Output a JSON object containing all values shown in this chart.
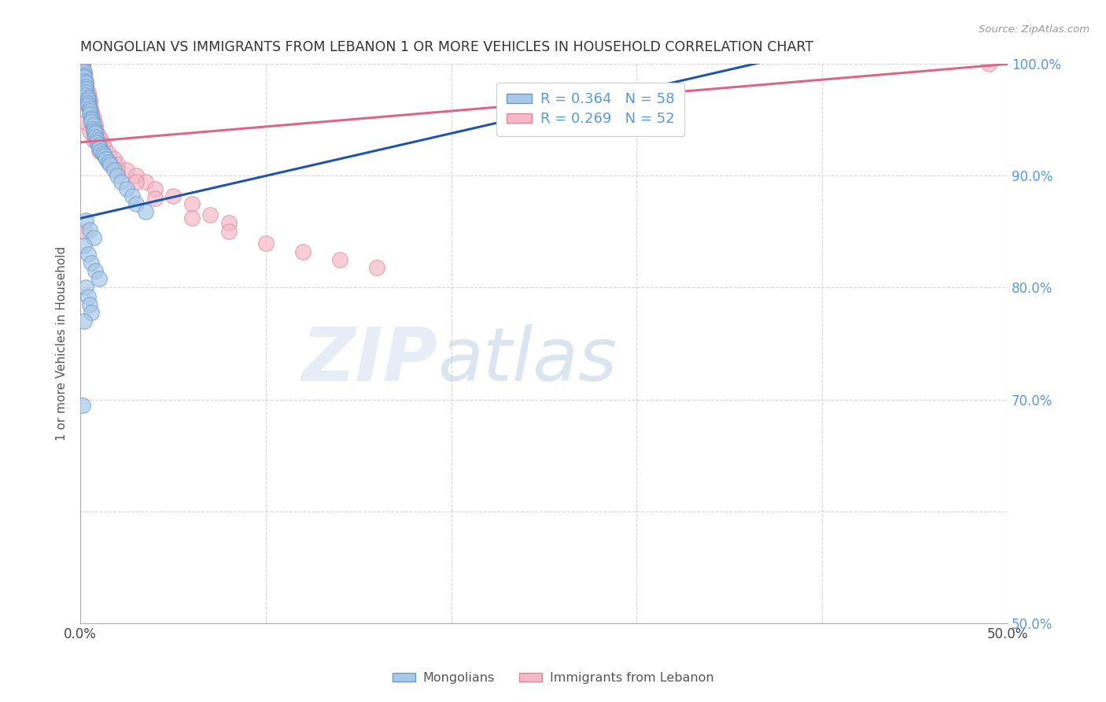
{
  "title": "MONGOLIAN VS IMMIGRANTS FROM LEBANON 1 OR MORE VEHICLES IN HOUSEHOLD CORRELATION CHART",
  "source": "Source: ZipAtlas.com",
  "ylabel": "1 or more Vehicles in Household",
  "xlim": [
    0.0,
    0.5
  ],
  "ylim": [
    0.5,
    1.0
  ],
  "xtick_vals": [
    0.0,
    0.1,
    0.2,
    0.3,
    0.4,
    0.5
  ],
  "xticklabels": [
    "0.0%",
    "",
    "",
    "",
    "",
    "50.0%"
  ],
  "ytick_vals": [
    0.5,
    0.6,
    0.7,
    0.8,
    0.9,
    1.0
  ],
  "yticklabels_right": [
    "50.0%",
    "",
    "70.0%",
    "80.0%",
    "90.0%",
    "100.0%"
  ],
  "mongolian_color": "#A8C8E8",
  "lebanon_color": "#F4B8C8",
  "mongolian_edge": "#6699CC",
  "lebanon_edge": "#DD8899",
  "trend_mongolian_color": "#2255AA",
  "trend_lebanon_color": "#DD6688",
  "legend_R_mongolian": "R = 0.364",
  "legend_N_mongolian": "N = 58",
  "legend_R_lebanon": "R = 0.269",
  "legend_N_lebanon": "N = 52",
  "legend_label_mongolian": "Mongolians",
  "legend_label_lebanon": "Immigrants from Lebanon",
  "watermark_zip": "ZIP",
  "watermark_atlas": "atlas",
  "background_color": "#FFFFFF",
  "grid_color": "#BBBBBB",
  "title_color": "#333333",
  "axis_label_color": "#555555",
  "right_tick_color": "#5599DD",
  "source_color": "#999999",
  "mongo_trend_intercept": 0.862,
  "mongo_trend_slope": 0.38,
  "leb_trend_intercept": 0.93,
  "leb_trend_slope": 0.14,
  "mongo_x": [
    0.001,
    0.001,
    0.001,
    0.002,
    0.002,
    0.002,
    0.002,
    0.003,
    0.003,
    0.003,
    0.003,
    0.003,
    0.004,
    0.004,
    0.004,
    0.004,
    0.005,
    0.005,
    0.005,
    0.006,
    0.006,
    0.006,
    0.007,
    0.007,
    0.007,
    0.008,
    0.008,
    0.009,
    0.009,
    0.01,
    0.01,
    0.011,
    0.012,
    0.013,
    0.014,
    0.015,
    0.016,
    0.018,
    0.02,
    0.022,
    0.025,
    0.028,
    0.03,
    0.035,
    0.003,
    0.005,
    0.007,
    0.002,
    0.004,
    0.006,
    0.008,
    0.01,
    0.003,
    0.004,
    0.005,
    0.006,
    0.002,
    0.001
  ],
  "mongo_y": [
    1.0,
    0.998,
    0.995,
    0.993,
    0.99,
    0.988,
    0.985,
    0.983,
    0.98,
    0.978,
    0.975,
    0.972,
    0.97,
    0.968,
    0.965,
    0.963,
    0.96,
    0.958,
    0.955,
    0.952,
    0.95,
    0.948,
    0.945,
    0.942,
    0.94,
    0.938,
    0.935,
    0.932,
    0.93,
    0.928,
    0.925,
    0.922,
    0.92,
    0.918,
    0.915,
    0.912,
    0.91,
    0.905,
    0.9,
    0.895,
    0.888,
    0.882,
    0.875,
    0.868,
    0.86,
    0.852,
    0.845,
    0.838,
    0.83,
    0.822,
    0.815,
    0.808,
    0.8,
    0.792,
    0.785,
    0.778,
    0.77,
    0.695
  ],
  "leb_x": [
    0.001,
    0.001,
    0.002,
    0.002,
    0.003,
    0.003,
    0.003,
    0.004,
    0.004,
    0.005,
    0.005,
    0.005,
    0.006,
    0.006,
    0.007,
    0.007,
    0.008,
    0.008,
    0.009,
    0.01,
    0.011,
    0.012,
    0.013,
    0.015,
    0.018,
    0.02,
    0.025,
    0.03,
    0.035,
    0.04,
    0.05,
    0.06,
    0.07,
    0.08,
    0.003,
    0.005,
    0.007,
    0.01,
    0.015,
    0.02,
    0.03,
    0.04,
    0.06,
    0.08,
    0.1,
    0.12,
    0.14,
    0.16,
    0.004,
    0.006,
    0.49,
    0.002
  ],
  "leb_y": [
    0.998,
    0.995,
    0.992,
    0.988,
    0.985,
    0.982,
    0.978,
    0.975,
    0.972,
    0.968,
    0.965,
    0.962,
    0.958,
    0.955,
    0.952,
    0.948,
    0.945,
    0.942,
    0.938,
    0.935,
    0.932,
    0.928,
    0.925,
    0.92,
    0.915,
    0.91,
    0.905,
    0.9,
    0.895,
    0.888,
    0.882,
    0.875,
    0.865,
    0.858,
    0.948,
    0.94,
    0.932,
    0.922,
    0.912,
    0.905,
    0.895,
    0.88,
    0.862,
    0.85,
    0.84,
    0.832,
    0.825,
    0.818,
    0.962,
    0.955,
    1.0,
    0.85
  ]
}
